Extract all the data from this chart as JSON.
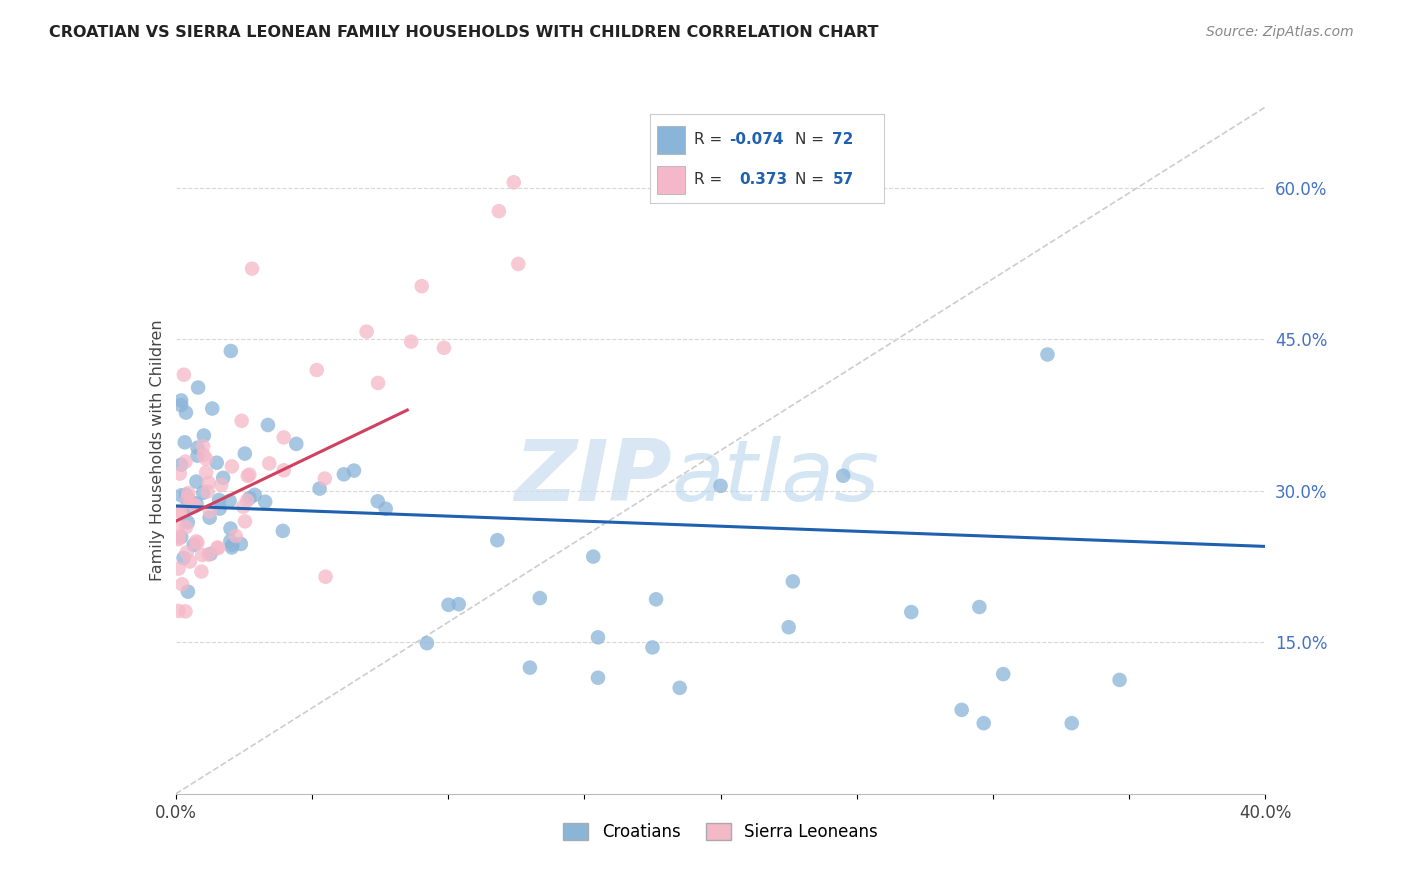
{
  "title": "CROATIAN VS SIERRA LEONEAN FAMILY HOUSEHOLDS WITH CHILDREN CORRELATION CHART",
  "source": "Source: ZipAtlas.com",
  "ylabel": "Family Households with Children",
  "xlim": [
    0.0,
    0.4
  ],
  "ylim": [
    0.0,
    0.68
  ],
  "ytick_vals": [
    0.15,
    0.3,
    0.45,
    0.6
  ],
  "ytick_labels": [
    "15.0%",
    "30.0%",
    "45.0%",
    "60.0%"
  ],
  "xtick_vals": [
    0.0,
    0.05,
    0.1,
    0.15,
    0.2,
    0.25,
    0.3,
    0.35,
    0.4
  ],
  "xtick_labels": [
    "0.0%",
    "",
    "",
    "",
    "",
    "",
    "",
    "",
    "40.0%"
  ],
  "blue_color": "#8ab4d8",
  "pink_color": "#f5b8c8",
  "blue_line_color": "#2060b0",
  "pink_line_color": "#d04060",
  "diagonal_color": "#c8c8c8",
  "watermark_zip": "ZIP",
  "watermark_atlas": "atlas",
  "background_color": "#ffffff",
  "grid_color": "#d8d8d8",
  "legend_blue_R": "-0.074",
  "legend_blue_N": "72",
  "legend_pink_R": "0.373",
  "legend_pink_N": "57",
  "blue_seed": 42,
  "pink_seed": 99
}
